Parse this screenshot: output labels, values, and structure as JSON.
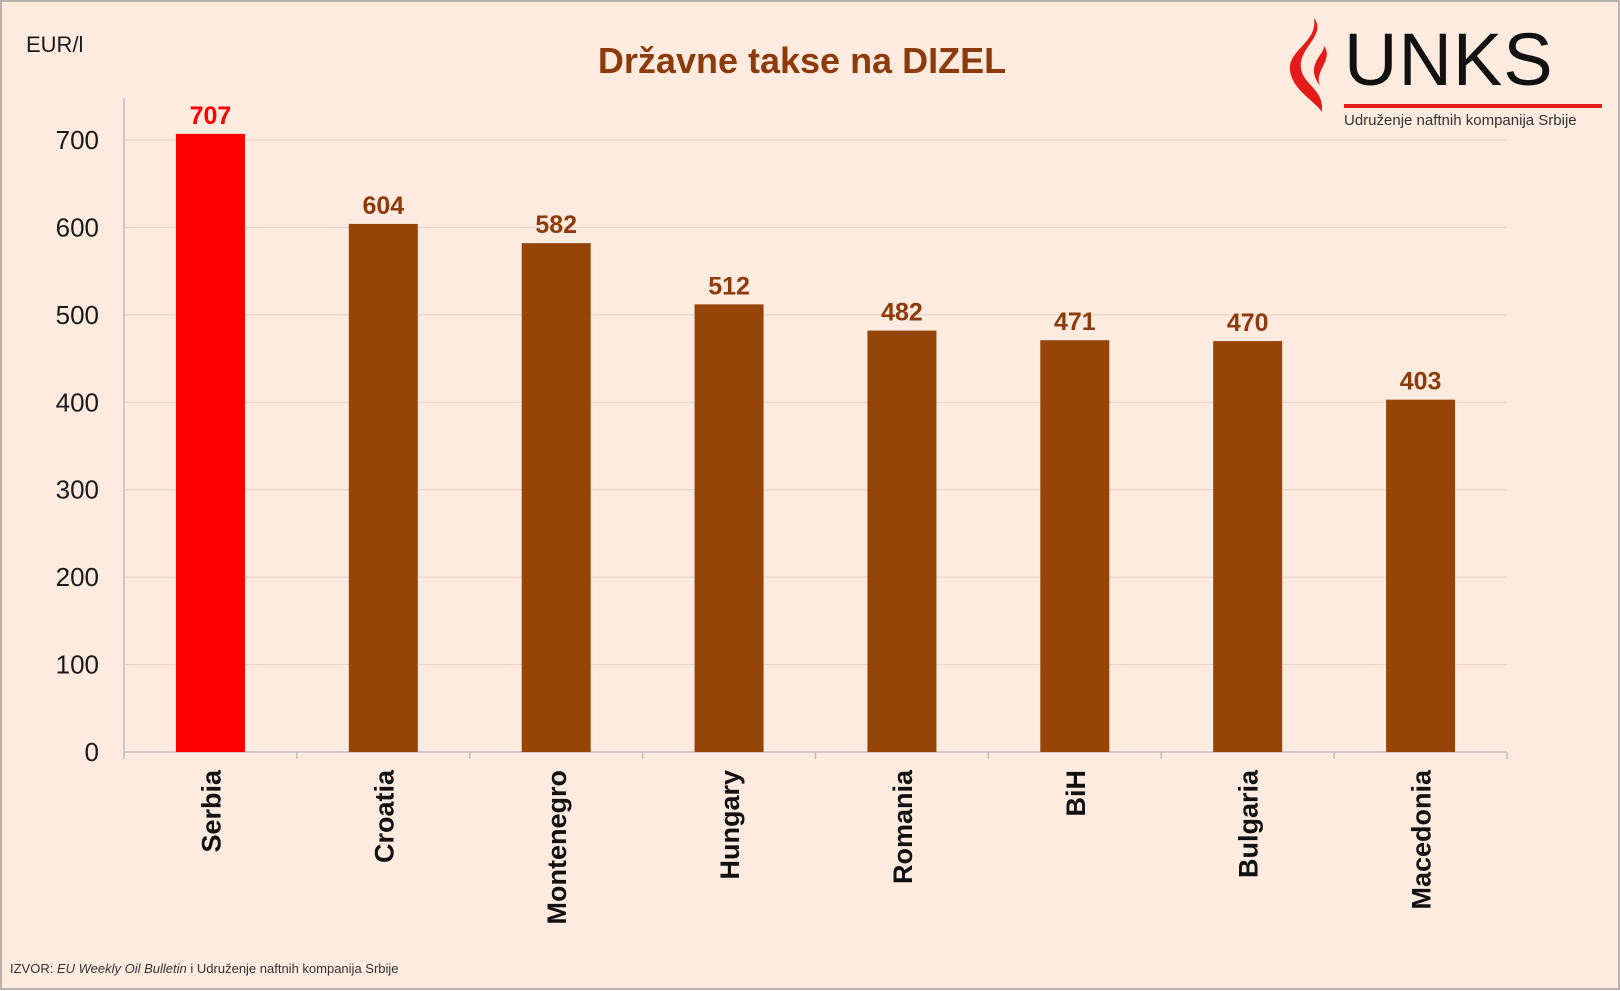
{
  "header": {
    "unit_label": "EUR/l",
    "title": "Državne takse na DIZEL"
  },
  "logo": {
    "name": "UNKS",
    "subtitle": "Udruženje naftnih kompanija Srbije"
  },
  "footer": {
    "source_prefix": "IZVOR:",
    "source_italic": "EU Weekly Oil Bulletin",
    "source_rest": "i Udruženje naftnih kompanija Srbije"
  },
  "colors": {
    "highlight_bar": "#ff0000",
    "bar": "#954508",
    "value_label": "#8c3b0c",
    "highlight_label": "#ff0000",
    "background": "#fdebdf",
    "grid": "#e6cfc2"
  },
  "chart_data": {
    "type": "bar",
    "title": "Državne takse na DIZEL",
    "ylabel": "EUR/l",
    "xlabel": "",
    "categories": [
      "Serbia",
      "Croatia",
      "Montenegro",
      "Hungary",
      "Romania",
      "BiH",
      "Bulgaria",
      "Macedonia"
    ],
    "values": [
      707,
      604,
      582,
      512,
      482,
      471,
      470,
      403
    ],
    "highlight_index": 0,
    "ylim": [
      0,
      700
    ],
    "yticks": [
      0,
      100,
      200,
      300,
      400,
      500,
      600,
      700
    ],
    "grid": true,
    "legend": "none"
  }
}
